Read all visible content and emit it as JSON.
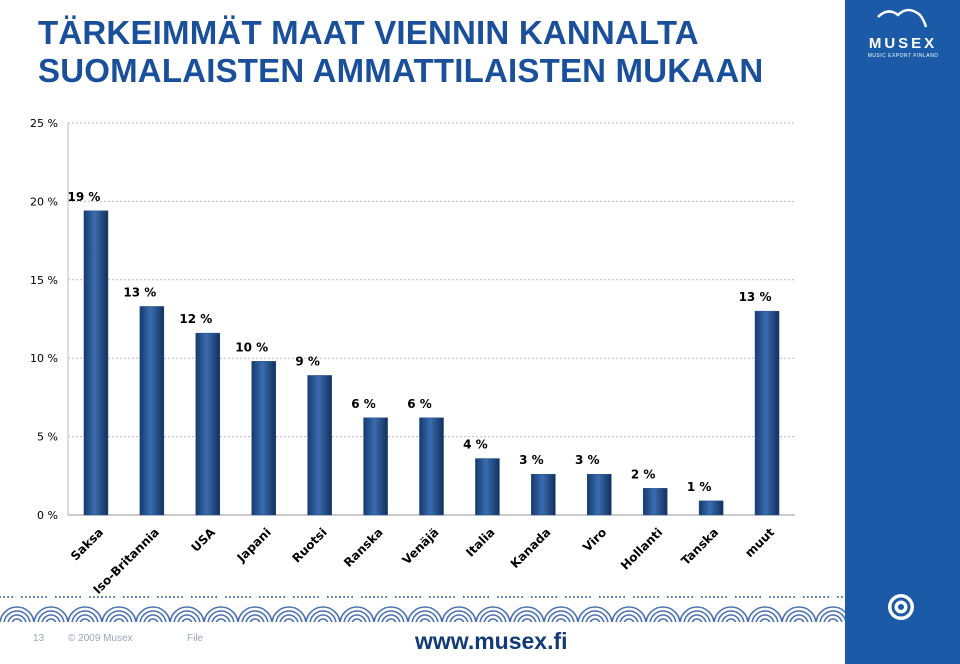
{
  "slide": {
    "logo": "MUSEX",
    "logo_subtitle": "MUSIC EXPORT FINLAND",
    "page_number": "13",
    "copyright": "© 2009 Musex",
    "file": "File",
    "url": "www.musex.fi"
  },
  "chart_data": {
    "type": "bar",
    "title": "TÄRKEIMMÄT MAAT VIENNIN KANNALTA SUOMALAISTEN AMMATTILAISTEN MUKAAN",
    "categories": [
      "Saksa",
      "Iso-Britannia",
      "USA",
      "Japani",
      "Ruotsi",
      "Ranska",
      "Venäjä",
      "Italia",
      "Kanada",
      "Viro",
      "Hollanti",
      "Tanska",
      "muut"
    ],
    "values": [
      19.4,
      13.3,
      11.6,
      9.8,
      8.9,
      6.2,
      6.2,
      3.6,
      2.6,
      2.6,
      1.7,
      0.9,
      13.0
    ],
    "value_labels": [
      "19 %",
      "13 %",
      "12 %",
      "10 %",
      "9 %",
      "6 %",
      "6 %",
      "4 %",
      "3 %",
      "3 %",
      "2 %",
      "1 %",
      "13 %"
    ],
    "color": "#1f4e8c",
    "ylim": [
      0,
      25
    ],
    "yticks": [
      {
        "value": 0,
        "label": "0 %"
      },
      {
        "value": 5,
        "label": "5 %"
      },
      {
        "value": 10,
        "label": "10 %"
      },
      {
        "value": 15,
        "label": "15 %"
      },
      {
        "value": 20,
        "label": "20 %"
      },
      {
        "value": 25,
        "label": "25 %"
      }
    ],
    "grid": true
  }
}
